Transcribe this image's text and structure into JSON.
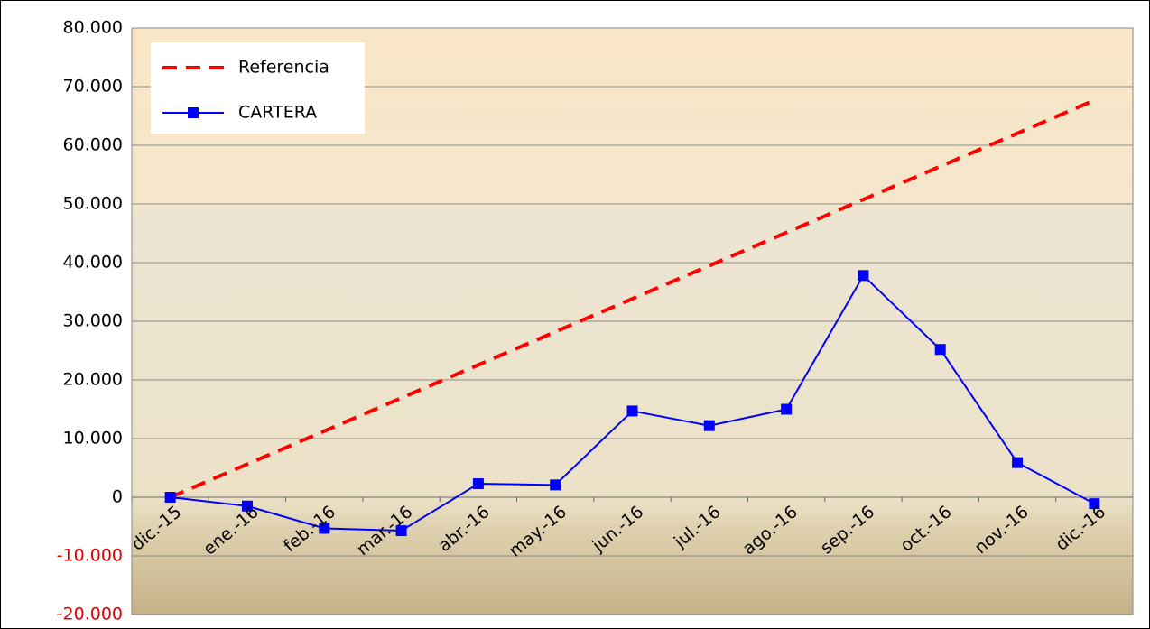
{
  "chart_data": {
    "type": "line",
    "categories": [
      "dic.-15",
      "ene.-16",
      "feb.-16",
      "mar.-16",
      "abr.-16",
      "may.-16",
      "jun.-16",
      "jul.-16",
      "ago.-16",
      "sep.-16",
      "oct.-16",
      "nov.-16",
      "dic.-16"
    ],
    "series": [
      {
        "name": "Referencia",
        "color": "#ff0000",
        "dashed": true,
        "marker": "none",
        "values": [
          0,
          5640,
          11280,
          16920,
          22560,
          28200,
          33840,
          39480,
          45120,
          50760,
          56400,
          62040,
          67680
        ]
      },
      {
        "name": "CARTERA",
        "color": "#0000ff",
        "dashed": false,
        "marker": "square",
        "values": [
          0,
          -1500,
          -5300,
          -5700,
          2300,
          2100,
          14700,
          12200,
          15000,
          37800,
          25200,
          5900,
          -1100
        ]
      }
    ],
    "ylim": [
      -20000,
      80000
    ],
    "yticks": [
      {
        "value": -20000,
        "label": "-20.000"
      },
      {
        "value": -10000,
        "label": "-10.000"
      },
      0,
      {
        "value": 10000,
        "label": "10.000"
      },
      {
        "value": 20000,
        "label": "20.000"
      },
      {
        "value": 30000,
        "label": "30.000"
      },
      {
        "value": 40000,
        "label": "40.000"
      },
      {
        "value": 50000,
        "label": "50.000"
      },
      {
        "value": 60000,
        "label": "60.000"
      },
      {
        "value": 70000,
        "label": "70.000"
      },
      {
        "value": 80000,
        "label": "80.000"
      }
    ],
    "negative_tick_color": "#e00000",
    "grid": true,
    "legend": "top-left"
  }
}
